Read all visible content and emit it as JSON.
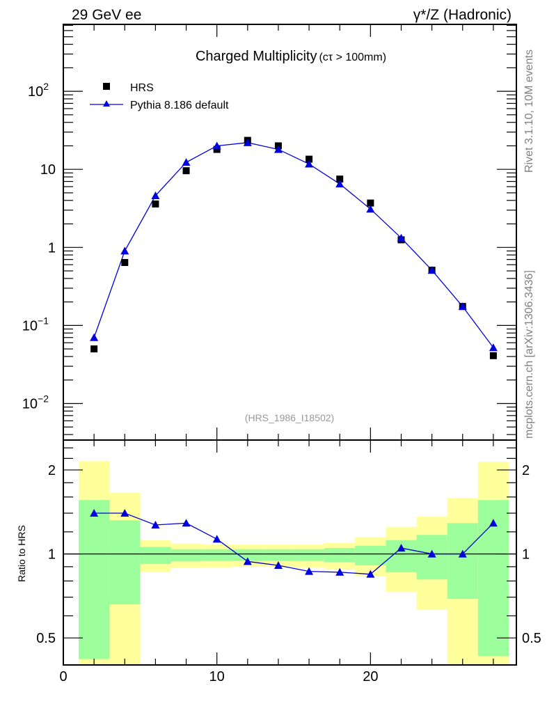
{
  "header": {
    "left": "29 GeV ee",
    "right": "γ*/Z (Hadronic)"
  },
  "side_text": {
    "rivet": "Rivet 3.1.10,  10M events",
    "mcplots": "mcplots.cern.ch [arXiv:1306.3436]"
  },
  "colors": {
    "data": "#000000",
    "mc": "#0000dd",
    "band_inner": "#9cff9c",
    "band_outer": "#ffff9c"
  },
  "chart_data": [
    {
      "type": "scatter",
      "title": "Charged Multiplicity",
      "title_suffix": "(cτ > 100mm)",
      "watermark": "(HRS_1986_I18502)",
      "yscale": "log",
      "xlim": [
        0,
        29.5
      ],
      "ylim": [
        0.0034,
        720
      ],
      "ytick_labels": [
        {
          "value": 100,
          "base": "10",
          "exp": "2"
        },
        {
          "value": 10,
          "base": "10",
          "exp": ""
        },
        {
          "value": 1,
          "base": "1",
          "exp": ""
        },
        {
          "value": 0.1,
          "base": "10",
          "exp": "−1"
        },
        {
          "value": 0.01,
          "base": "10",
          "exp": "−2"
        }
      ],
      "legend": {
        "placement": "top-left",
        "entries": [
          "HRS",
          "Pythia 8.186 default"
        ]
      },
      "x": [
        2,
        4,
        6,
        8,
        10,
        12,
        14,
        16,
        18,
        20,
        22,
        24,
        26,
        28
      ],
      "series": [
        {
          "name": "HRS",
          "marker": "square",
          "values": [
            0.05,
            0.64,
            3.6,
            9.6,
            18,
            23.5,
            20,
            13.5,
            7.5,
            3.7,
            1.25,
            0.51,
            0.175,
            0.041
          ]
        },
        {
          "name": "Pythia 8.186 default",
          "marker": "triangle",
          "line": true,
          "values": [
            0.07,
            0.9,
            4.6,
            12.3,
            20,
            22,
            18,
            11.7,
            6.5,
            3.1,
            1.32,
            0.51,
            0.175,
            0.052
          ]
        }
      ]
    },
    {
      "type": "line",
      "ylabel": "Ratio to HRS",
      "yscale": "log",
      "xlim": [
        0,
        29.5
      ],
      "ylim": [
        0.4,
        2.56
      ],
      "xtick_labels": [
        "0",
        "10",
        "20"
      ],
      "xtick_values": [
        0,
        10,
        20
      ],
      "ytick_labels": [
        "2",
        "1",
        "0.5"
      ],
      "ytick_values": [
        2,
        1,
        0.5
      ],
      "bin_edges": [
        1,
        3,
        5,
        7,
        9,
        11,
        13,
        15,
        17,
        19,
        21,
        23,
        25,
        27,
        29
      ],
      "band_outer_hi": [
        2.15,
        1.66,
        1.12,
        1.09,
        1.08,
        1.08,
        1.08,
        1.08,
        1.095,
        1.15,
        1.25,
        1.36,
        1.59,
        2.14
      ],
      "band_outer_lo": [
        0.35,
        0.35,
        0.86,
        0.89,
        0.895,
        0.9,
        0.9,
        0.895,
        0.88,
        0.83,
        0.73,
        0.63,
        0.4,
        0.35
      ],
      "band_inner_hi": [
        1.56,
        1.32,
        1.06,
        1.04,
        1.04,
        1.04,
        1.04,
        1.04,
        1.05,
        1.07,
        1.12,
        1.17,
        1.29,
        1.56
      ],
      "band_inner_lo": [
        0.42,
        0.66,
        0.92,
        0.94,
        0.945,
        0.945,
        0.945,
        0.945,
        0.935,
        0.91,
        0.86,
        0.81,
        0.69,
        0.43
      ],
      "x": [
        2,
        4,
        6,
        8,
        10,
        12,
        14,
        16,
        18,
        20,
        22,
        24,
        26,
        28
      ],
      "series": [
        {
          "name": "Pythia 8.186 default / HRS",
          "values": [
            1.4,
            1.4,
            1.27,
            1.29,
            1.13,
            0.94,
            0.91,
            0.866,
            0.86,
            0.846,
            1.05,
            1.0,
            1.0,
            1.29
          ]
        }
      ]
    }
  ]
}
